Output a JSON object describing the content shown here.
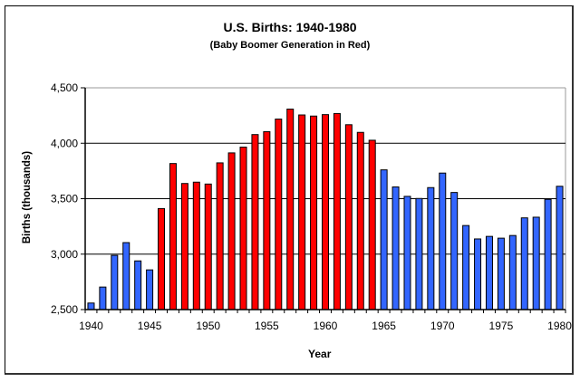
{
  "chart_data": {
    "type": "bar",
    "title": "U.S. Births: 1940-1980",
    "subtitle": "(Baby Boomer Generation in Red)",
    "xlabel": "Year",
    "ylabel": "Births (thousands)",
    "ylim": [
      2500,
      4500
    ],
    "yticks": [
      2500,
      3000,
      3500,
      4000,
      4500
    ],
    "ytick_labels": [
      "2,500",
      "3,000",
      "3,500",
      "4,000",
      "4,500"
    ],
    "xtick_labels": [
      "1940",
      "1945",
      "1950",
      "1955",
      "1960",
      "1965",
      "1970",
      "1975",
      "1980"
    ],
    "grid": true,
    "legend": null,
    "colors": {
      "boomer": "#ff0000",
      "other": "#3366ff"
    },
    "highlight_range": [
      1946,
      1964
    ],
    "categories": [
      1940,
      1941,
      1942,
      1943,
      1944,
      1945,
      1946,
      1947,
      1948,
      1949,
      1950,
      1951,
      1952,
      1953,
      1954,
      1955,
      1956,
      1957,
      1958,
      1959,
      1960,
      1961,
      1962,
      1963,
      1964,
      1965,
      1966,
      1967,
      1968,
      1969,
      1970,
      1971,
      1972,
      1973,
      1974,
      1975,
      1976,
      1977,
      1978,
      1979,
      1980
    ],
    "values": [
      2559,
      2703,
      2989,
      3104,
      2939,
      2858,
      3411,
      3817,
      3637,
      3649,
      3632,
      3823,
      3913,
      3965,
      4078,
      4104,
      4218,
      4308,
      4255,
      4245,
      4258,
      4268,
      4167,
      4098,
      4027,
      3760,
      3606,
      3521,
      3502,
      3600,
      3731,
      3556,
      3258,
      3137,
      3160,
      3144,
      3168,
      3327,
      3333,
      3494,
      3612
    ]
  }
}
